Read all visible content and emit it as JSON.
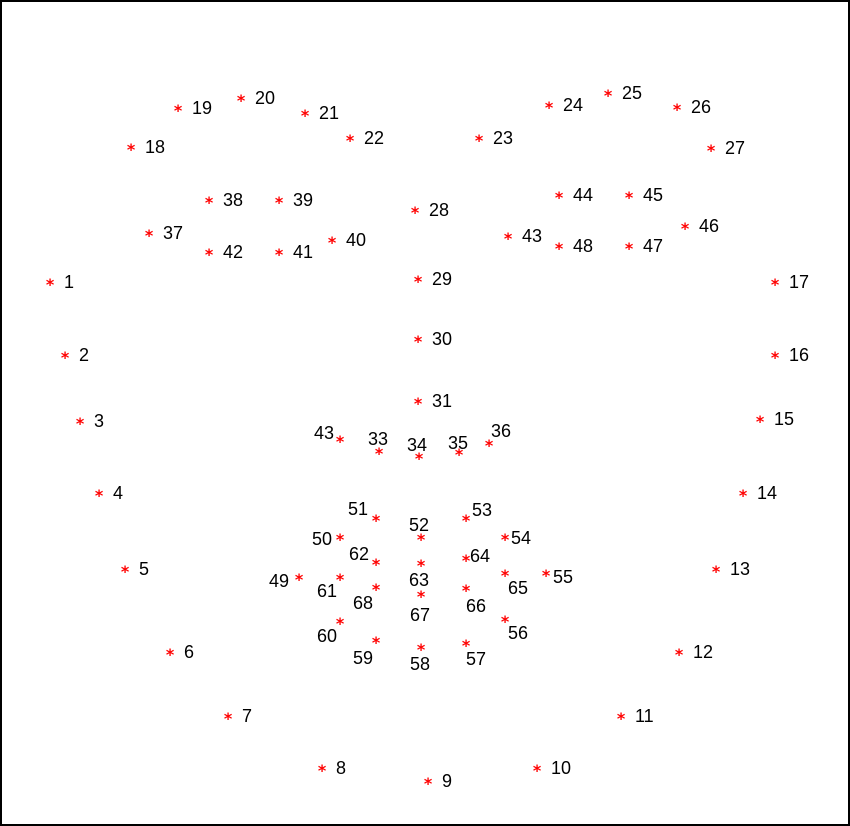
{
  "marker": {
    "symbol": "*",
    "color": "#ff0000"
  },
  "label_color": "#000000",
  "border_color": "#000000",
  "landmarks": [
    {
      "label": "1"
    },
    {
      "label": "2"
    },
    {
      "label": "3"
    },
    {
      "label": "4"
    },
    {
      "label": "5"
    },
    {
      "label": "6"
    },
    {
      "label": "7"
    },
    {
      "label": "8"
    },
    {
      "label": "9"
    },
    {
      "label": "10"
    },
    {
      "label": "11"
    },
    {
      "label": "12"
    },
    {
      "label": "13"
    },
    {
      "label": "14"
    },
    {
      "label": "15"
    },
    {
      "label": "16"
    },
    {
      "label": "17"
    },
    {
      "label": "18"
    },
    {
      "label": "19"
    },
    {
      "label": "20"
    },
    {
      "label": "21"
    },
    {
      "label": "22"
    },
    {
      "label": "23"
    },
    {
      "label": "24"
    },
    {
      "label": "25"
    },
    {
      "label": "26"
    },
    {
      "label": "27"
    },
    {
      "label": "28"
    },
    {
      "label": "29"
    },
    {
      "label": "30"
    },
    {
      "label": "31"
    },
    {
      "label": "43"
    },
    {
      "label": "33"
    },
    {
      "label": "34"
    },
    {
      "label": "35"
    },
    {
      "label": "36"
    },
    {
      "label": "37"
    },
    {
      "label": "38"
    },
    {
      "label": "39"
    },
    {
      "label": "40"
    },
    {
      "label": "41"
    },
    {
      "label": "42"
    },
    {
      "label": "43"
    },
    {
      "label": "44"
    },
    {
      "label": "45"
    },
    {
      "label": "46"
    },
    {
      "label": "47"
    },
    {
      "label": "48"
    },
    {
      "label": "49"
    },
    {
      "label": "50"
    },
    {
      "label": "51"
    },
    {
      "label": "52"
    },
    {
      "label": "53"
    },
    {
      "label": "54"
    },
    {
      "label": "55"
    },
    {
      "label": "56"
    },
    {
      "label": "57"
    },
    {
      "label": "58"
    },
    {
      "label": "59"
    },
    {
      "label": "60"
    },
    {
      "label": "61"
    },
    {
      "label": "62"
    },
    {
      "label": "63"
    },
    {
      "label": "64"
    },
    {
      "label": "65"
    },
    {
      "label": "66"
    },
    {
      "label": "67"
    },
    {
      "label": "68"
    }
  ]
}
